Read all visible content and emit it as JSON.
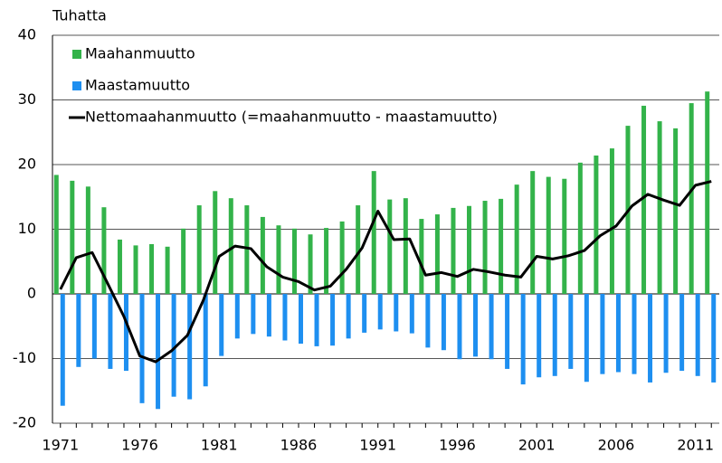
{
  "chart_data": {
    "type": "bar-line",
    "y_label": "Tuhatta",
    "categories": [
      "1971",
      null,
      null,
      null,
      null,
      "1976",
      null,
      null,
      null,
      null,
      "1981",
      null,
      null,
      null,
      null,
      "1986",
      null,
      null,
      null,
      null,
      "1991",
      null,
      null,
      null,
      null,
      "1996",
      null,
      null,
      null,
      null,
      "2001",
      null,
      null,
      null,
      null,
      "2006",
      null,
      null,
      null,
      null,
      "2011",
      null
    ],
    "series": [
      {
        "name": "Maahanmuutto",
        "kind": "bar",
        "color": "#33b34a",
        "values": [
          18.4,
          17.5,
          16.6,
          13.4,
          8.4,
          7.5,
          7.7,
          7.3,
          10.1,
          13.7,
          15.9,
          14.8,
          13.7,
          11.9,
          10.6,
          10.1,
          9.2,
          10.2,
          11.2,
          13.7,
          19.0,
          14.6,
          14.8,
          11.6,
          12.3,
          13.3,
          13.6,
          14.4,
          14.7,
          16.9,
          19.0,
          18.1,
          17.8,
          20.3,
          21.4,
          22.5,
          26.0,
          29.1,
          26.7,
          25.6,
          29.5,
          31.3
        ]
      },
      {
        "name": "Maastamuutto",
        "kind": "bar",
        "color": "#1e8ff0",
        "values": [
          -17.3,
          -11.3,
          -10.0,
          -11.6,
          -11.9,
          -16.9,
          -17.8,
          -15.9,
          -16.3,
          -14.3,
          -9.6,
          -6.9,
          -6.2,
          -6.6,
          -7.2,
          -7.7,
          -8.1,
          -8.0,
          -6.9,
          -6.0,
          -5.5,
          -5.8,
          -6.1,
          -8.3,
          -8.7,
          -10.1,
          -9.7,
          -10.1,
          -11.6,
          -14.0,
          -12.9,
          -12.7,
          -11.6,
          -13.6,
          -12.4,
          -12.1,
          -12.4,
          -13.7,
          -12.2,
          -11.9,
          -12.7,
          -13.7
        ]
      },
      {
        "name": "Nettomaahanmuutto (=maahanmuutto - maastamuutto)",
        "kind": "line",
        "color": "#000000",
        "values": [
          0.7,
          5.6,
          6.4,
          1.5,
          -3.5,
          -9.6,
          -10.5,
          -8.8,
          -6.4,
          -1.0,
          5.8,
          7.4,
          7.0,
          4.2,
          2.6,
          1.9,
          0.6,
          1.2,
          3.8,
          7.1,
          12.8,
          8.4,
          8.5,
          2.9,
          3.3,
          2.7,
          3.8,
          3.4,
          2.9,
          2.6,
          5.8,
          5.4,
          5.9,
          6.7,
          9.0,
          10.5,
          13.6,
          15.4,
          14.5,
          13.7,
          16.8,
          17.4
        ]
      }
    ],
    "ylim": [
      -20,
      40
    ],
    "yticks": [
      -20,
      -10,
      0,
      10,
      20,
      30,
      40
    ],
    "grid": true,
    "legend": "top-left"
  }
}
